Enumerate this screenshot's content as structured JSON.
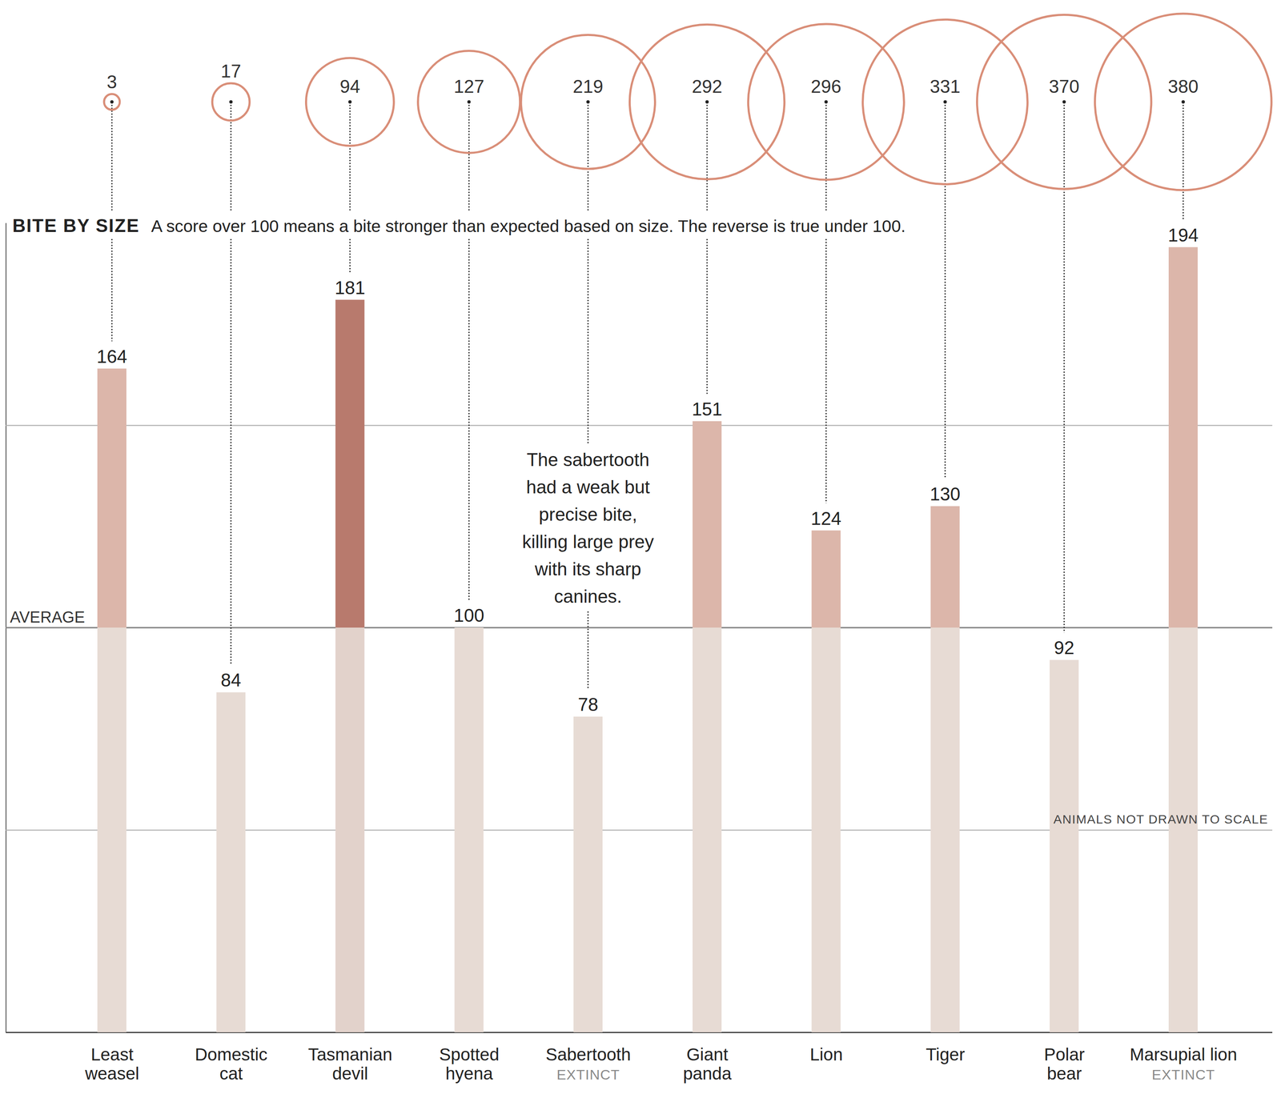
{
  "chart_data": {
    "type": "bar",
    "title": "BITE BY SIZE",
    "subtitle": "A score over 100 means a bite stronger than expected based on size. The reverse is true under 100.",
    "categories": [
      "Least weasel",
      "Domestic cat",
      "Tasmanian devil",
      "Spotted hyena",
      "Sabertooth",
      "Giant panda",
      "Lion",
      "Tiger",
      "Polar bear",
      "Marsupial lion"
    ],
    "category_notes": [
      null,
      null,
      null,
      null,
      "EXTINCT",
      null,
      null,
      null,
      null,
      "EXTINCT"
    ],
    "values": [
      164,
      84,
      181,
      100,
      78,
      151,
      124,
      130,
      92,
      194
    ],
    "bite_force": [
      3,
      17,
      94,
      127,
      219,
      292,
      296,
      331,
      370,
      380
    ],
    "colors": [
      "#dcb6aa",
      "#dcb6aa",
      "#b87a6d",
      "#dcb6aa",
      "#dcb6aa",
      "#dcb6aa",
      "#dcb6aa",
      "#dcb6aa",
      "#dcb6aa",
      "#dcb6aa"
    ],
    "ylim": [
      0,
      200
    ],
    "yticks": [
      0,
      50,
      100,
      150
    ],
    "grid": true,
    "tick_labels": "x",
    "data_labels": true,
    "reference_line": {
      "value": 100,
      "label": "AVERAGE"
    },
    "annotations": [
      {
        "category": "Sabertooth",
        "text": "The sabertooth had a weak but precise bite, killing large prey with its sharp canines."
      }
    ],
    "footnote": "ANIMALS NOT DRAWN TO SCALE"
  }
}
